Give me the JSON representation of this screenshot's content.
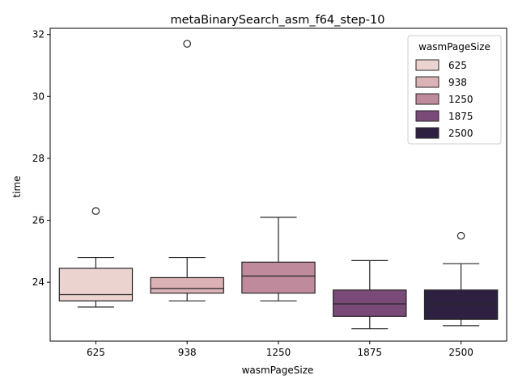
{
  "chart_data": {
    "type": "box",
    "title": "metaBinarySearch_asm_f64_step-10",
    "xlabel": "wasmPageSize",
    "ylabel": "time",
    "categories": [
      "625",
      "938",
      "1250",
      "1875",
      "2500"
    ],
    "ylim": [
      22.1,
      32.2
    ],
    "yticks": [
      24,
      26,
      28,
      30,
      32
    ],
    "grid": false,
    "legend": {
      "title": "wasmPageSize",
      "placement": "top-right",
      "entries": [
        "625",
        "938",
        "1250",
        "1875",
        "2500"
      ]
    },
    "colors": [
      "#ebd3d0",
      "#dbb2b5",
      "#c08a9d",
      "#7a4a79",
      "#2d2040"
    ],
    "boxes": [
      {
        "category": "625",
        "whisker_low": 23.2,
        "q1": 23.4,
        "median": 23.6,
        "q3": 24.45,
        "whisker_high": 24.8,
        "outliers": [
          26.3
        ]
      },
      {
        "category": "938",
        "whisker_low": 23.4,
        "q1": 23.65,
        "median": 23.8,
        "q3": 24.15,
        "whisker_high": 24.8,
        "outliers": [
          31.7
        ]
      },
      {
        "category": "1250",
        "whisker_low": 23.4,
        "q1": 23.65,
        "median": 24.2,
        "q3": 24.65,
        "whisker_high": 26.1,
        "outliers": []
      },
      {
        "category": "1875",
        "whisker_low": 22.5,
        "q1": 22.9,
        "median": 23.3,
        "q3": 23.75,
        "whisker_high": 24.7,
        "outliers": []
      },
      {
        "category": "2500",
        "whisker_low": 22.6,
        "q1": 22.8,
        "median": 23.3,
        "q3": 23.75,
        "whisker_high": 24.6,
        "outliers": [
          25.5
        ]
      }
    ]
  }
}
